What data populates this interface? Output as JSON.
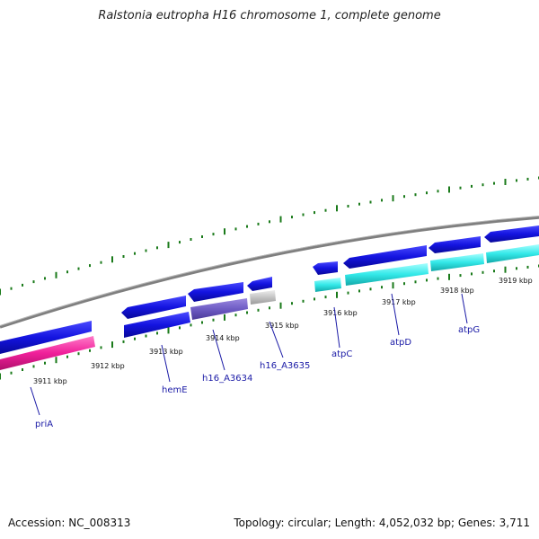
{
  "title": "Ralstonia eutropha H16 chromosome 1, complete genome",
  "footer": {
    "accession": "Accession: NC_008313",
    "stats": "Topology: circular; Length: 4,052,032 bp; Genes: 3,711"
  },
  "tick_labels": [
    "3911 kbp",
    "3912 kbp",
    "3913 kbp",
    "3914 kbp",
    "3915 kbp",
    "3916 kbp",
    "3917 kbp",
    "3918 kbp",
    "3919 kbp"
  ],
  "gene_labels": [
    "priA",
    "hemE",
    "h16_A3634",
    "h16_A3635",
    "atpC",
    "atpD",
    "atpG"
  ],
  "colors": {
    "forward_cds": "#1a1ae6",
    "reverse_cds": "#0f0fcc",
    "rrna_like": "#7a66cc",
    "pseudo": "#c8c8c8",
    "pink_feature": "#ff33aa",
    "cyan_feature": "#33e6e6",
    "backbone": "#808080",
    "tick": "#1a7a1a",
    "label": "#1a1aa6"
  }
}
